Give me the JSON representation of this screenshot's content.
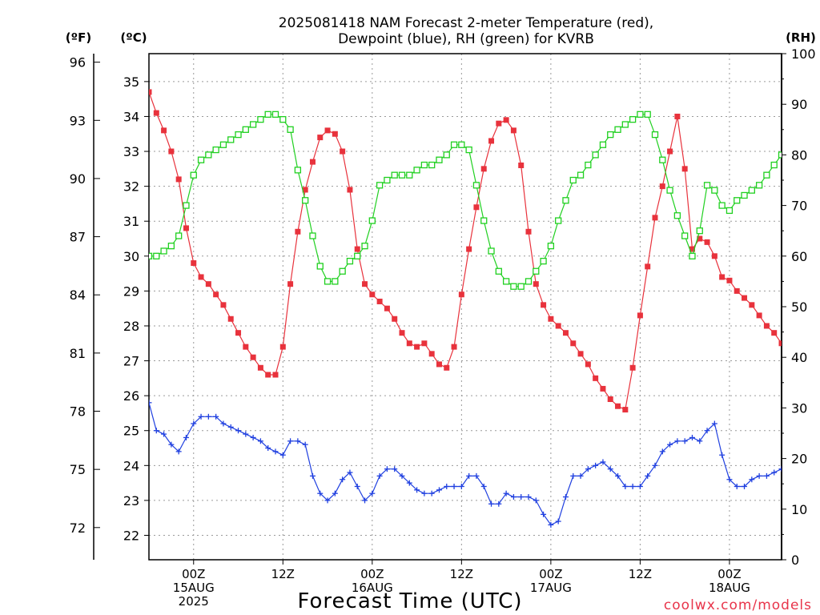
{
  "title_line1": "2025081418 NAM Forecast 2-meter Temperature (red),",
  "title_line2": "Dewpoint (blue), RH (green) for KVRB",
  "unit_f": "(ºF)",
  "unit_c": "(ºC)",
  "unit_rh": "(RH)",
  "xlabel": "Forecast Time (UTC)",
  "credit": "coolwx.com/models",
  "colors": {
    "temperature": "#e8323c",
    "dewpoint": "#2040e0",
    "rh": "#20d020",
    "grid": "#9a9a9a"
  },
  "chart_data": {
    "type": "line",
    "x_unit": "hours after 2025-08-14 18Z",
    "x": [
      0,
      1,
      2,
      3,
      4,
      5,
      6,
      7,
      8,
      9,
      10,
      11,
      12,
      13,
      14,
      15,
      16,
      17,
      18,
      19,
      20,
      21,
      22,
      23,
      24,
      25,
      26,
      27,
      28,
      29,
      30,
      31,
      32,
      33,
      34,
      35,
      36,
      37,
      38,
      39,
      40,
      41,
      42,
      43,
      44,
      45,
      46,
      47,
      48,
      49,
      50,
      51,
      52,
      53,
      54,
      55,
      56,
      57,
      58,
      59,
      60,
      61,
      62,
      63,
      64,
      65,
      66,
      67,
      68,
      69,
      70,
      71,
      72,
      73,
      74,
      75,
      76,
      77,
      78,
      79,
      80,
      81,
      82,
      83,
      84,
      85
    ],
    "xlim": [
      0,
      85
    ],
    "series": [
      {
        "name": "2-meter Temperature",
        "color": "red",
        "marker": "filled-square",
        "axis": "celsius",
        "values": [
          34.7,
          34.1,
          33.6,
          33.0,
          32.2,
          30.8,
          29.8,
          29.4,
          29.2,
          28.9,
          28.6,
          28.2,
          27.8,
          27.4,
          27.1,
          26.8,
          26.6,
          26.6,
          27.4,
          29.2,
          30.7,
          31.9,
          32.7,
          33.4,
          33.6,
          33.5,
          33.0,
          31.9,
          30.2,
          29.2,
          28.9,
          28.7,
          28.5,
          28.2,
          27.8,
          27.5,
          27.4,
          27.5,
          27.2,
          26.9,
          26.8,
          27.4,
          28.9,
          30.2,
          31.4,
          32.5,
          33.3,
          33.8,
          33.9,
          33.6,
          32.6,
          30.7,
          29.2,
          28.6,
          28.2,
          28.0,
          27.8,
          27.5,
          27.2,
          26.9,
          26.5,
          26.2,
          25.9,
          25.7,
          25.6,
          26.8,
          28.3,
          29.7,
          31.1,
          32.0,
          33.0,
          34.0,
          32.5,
          30.2,
          30.5,
          30.4,
          30.0,
          29.4,
          29.3,
          29.0,
          28.8,
          28.6,
          28.3,
          28.0,
          27.8,
          27.5
        ]
      },
      {
        "name": "Dewpoint",
        "color": "blue",
        "marker": "plus",
        "axis": "celsius",
        "values": [
          25.8,
          25.0,
          24.9,
          24.6,
          24.4,
          24.8,
          25.2,
          25.4,
          25.4,
          25.4,
          25.2,
          25.1,
          25.0,
          24.9,
          24.8,
          24.7,
          24.5,
          24.4,
          24.3,
          24.7,
          24.7,
          24.6,
          23.7,
          23.2,
          23.0,
          23.2,
          23.6,
          23.8,
          23.4,
          23.0,
          23.2,
          23.7,
          23.9,
          23.9,
          23.7,
          23.5,
          23.3,
          23.2,
          23.2,
          23.3,
          23.4,
          23.4,
          23.4,
          23.7,
          23.7,
          23.4,
          22.9,
          22.9,
          23.2,
          23.1,
          23.1,
          23.1,
          23.0,
          22.6,
          22.3,
          22.4,
          23.1,
          23.7,
          23.7,
          23.9,
          24.0,
          24.1,
          23.9,
          23.7,
          23.4,
          23.4,
          23.4,
          23.7,
          24.0,
          24.4,
          24.6,
          24.7,
          24.7,
          24.8,
          24.7,
          25.0,
          25.2,
          24.3,
          23.6,
          23.4,
          23.4,
          23.6,
          23.7,
          23.7,
          23.8,
          23.9
        ]
      },
      {
        "name": "RH",
        "color": "green",
        "marker": "open-square",
        "axis": "rh",
        "values": [
          60,
          60,
          61,
          62,
          64,
          70,
          76,
          79,
          80,
          81,
          82,
          83,
          84,
          85,
          86,
          87,
          88,
          88,
          87,
          85,
          77,
          71,
          64,
          58,
          55,
          55,
          57,
          59,
          60,
          62,
          67,
          74,
          75,
          76,
          76,
          76,
          77,
          78,
          78,
          79,
          80,
          82,
          82,
          81,
          74,
          67,
          61,
          57,
          55,
          54,
          54,
          55,
          57,
          59,
          62,
          67,
          71,
          75,
          76,
          78,
          80,
          82,
          84,
          85,
          86,
          87,
          88,
          88,
          84,
          79,
          73,
          68,
          64,
          60,
          65,
          74,
          73,
          70,
          69,
          71,
          72,
          73,
          74,
          76,
          78,
          80
        ]
      }
    ],
    "y_celsius": {
      "ticks": [
        22,
        23,
        24,
        25,
        26,
        27,
        28,
        29,
        30,
        31,
        32,
        33,
        34,
        35
      ],
      "ylim": [
        21.3,
        35.8
      ]
    },
    "y_fahrenheit_ticks": [
      72,
      75,
      78,
      81,
      84,
      87,
      90,
      93,
      96
    ],
    "y_rh": {
      "ticks": [
        0,
        10,
        20,
        30,
        40,
        50,
        60,
        70,
        80,
        90,
        100
      ],
      "ylim": [
        0,
        100
      ]
    },
    "x_ticks": [
      {
        "hour": 6,
        "l1": "00Z",
        "l2": "15AUG",
        "l3": "2025"
      },
      {
        "hour": 18,
        "l1": "12Z",
        "l2": "",
        "l3": ""
      },
      {
        "hour": 30,
        "l1": "00Z",
        "l2": "16AUG",
        "l3": ""
      },
      {
        "hour": 42,
        "l1": "12Z",
        "l2": "",
        "l3": ""
      },
      {
        "hour": 54,
        "l1": "00Z",
        "l2": "17AUG",
        "l3": ""
      },
      {
        "hour": 66,
        "l1": "12Z",
        "l2": "",
        "l3": ""
      },
      {
        "hour": 78,
        "l1": "00Z",
        "l2": "18AUG",
        "l3": ""
      }
    ],
    "grid": true
  }
}
